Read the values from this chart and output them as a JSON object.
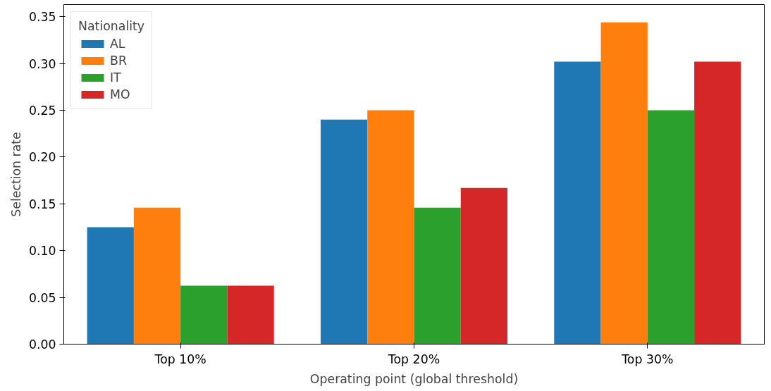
{
  "chart_data": {
    "type": "bar",
    "xlabel": "Operating point (global threshold)",
    "ylabel": "Selection rate",
    "legend_title": "Nationality",
    "legend": "top left",
    "grid": false,
    "categories": [
      "Top 10%",
      "Top 20%",
      "Top 30%"
    ],
    "ylim": [
      0,
      0.363
    ],
    "yticks": [
      {
        "value": 0,
        "label": "0.00"
      },
      0.05,
      {
        "value": 0.1,
        "label": "0.10"
      },
      0.15,
      {
        "value": 0.2,
        "label": "0.20"
      },
      0.25,
      {
        "value": 0.3,
        "label": "0.30"
      },
      0.35
    ],
    "series": [
      {
        "name": "AL",
        "color": "#1f77b4",
        "values": [
          0.125,
          0.24,
          0.302
        ]
      },
      {
        "name": "BR",
        "color": "#ff7f0e",
        "values": [
          0.146,
          0.25,
          0.344
        ]
      },
      {
        "name": "IT",
        "color": "#2ca02c",
        "values": [
          0.0625,
          0.146,
          0.25
        ]
      },
      {
        "name": "MO",
        "color": "#d62728",
        "values": [
          0.0625,
          0.167,
          0.302
        ]
      }
    ]
  }
}
